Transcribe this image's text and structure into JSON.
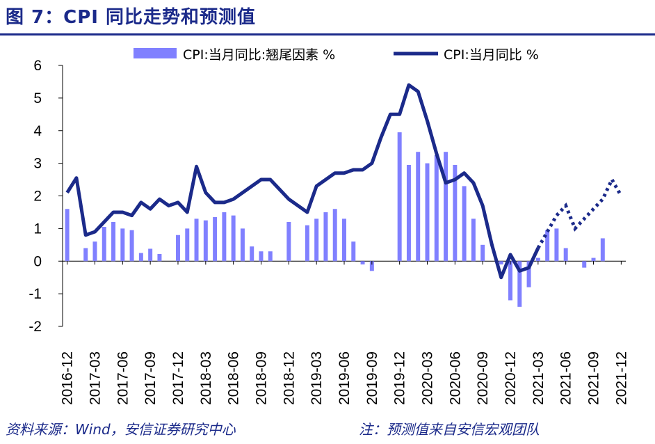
{
  "title": "图 7：CPI 同比走势和预测值",
  "footer": {
    "source": "资料来源：Wind，安信证券研究中心",
    "note": "注：预测值来自安信宏观团队"
  },
  "colors": {
    "title": "#1b2a8a",
    "line": "#1b2a8a",
    "bar": "#8080ff"
  },
  "chart_data": {
    "type": "bar+line",
    "title": "",
    "xlabel": "",
    "ylabel": "",
    "ylim": [
      -2,
      6
    ],
    "yticks": [
      "6",
      "5",
      "4",
      "3",
      "2",
      "1",
      "0",
      "-1",
      "-2"
    ],
    "x": [
      "2016-12",
      "2017-01",
      "2017-02",
      "2017-03",
      "2017-04",
      "2017-05",
      "2017-06",
      "2017-07",
      "2017-08",
      "2017-09",
      "2017-10",
      "2017-11",
      "2017-12",
      "2018-01",
      "2018-02",
      "2018-03",
      "2018-04",
      "2018-05",
      "2018-06",
      "2018-07",
      "2018-08",
      "2018-09",
      "2018-10",
      "2018-11",
      "2018-12",
      "2019-01",
      "2019-02",
      "2019-03",
      "2019-04",
      "2019-05",
      "2019-06",
      "2019-07",
      "2019-08",
      "2019-09",
      "2019-10",
      "2019-11",
      "2019-12",
      "2020-01",
      "2020-02",
      "2020-03",
      "2020-04",
      "2020-05",
      "2020-06",
      "2020-07",
      "2020-08",
      "2020-09",
      "2020-10",
      "2020-11",
      "2020-12",
      "2021-01",
      "2021-02",
      "2021-03",
      "2021-04",
      "2021-05",
      "2021-06",
      "2021-07",
      "2021-08",
      "2021-09",
      "2021-10",
      "2021-11",
      "2021-12"
    ],
    "xtick_labels": [
      "2016-12",
      "2017-03",
      "2017-06",
      "2017-09",
      "2017-12",
      "2018-03",
      "2018-06",
      "2018-09",
      "2018-12",
      "2019-03",
      "2019-06",
      "2019-09",
      "2019-12",
      "2020-03",
      "2020-06",
      "2020-09",
      "2020-12",
      "2021-03",
      "2021-06",
      "2021-09",
      "2021-12"
    ],
    "legend": {
      "position": "top",
      "entries": [
        "CPI:当月同比:翘尾因素 %",
        "CPI:当月同比 %"
      ]
    },
    "series": [
      {
        "name": "CPI:当月同比:翘尾因素 %",
        "type": "bar",
        "values": [
          1.6,
          0.0,
          0.4,
          0.6,
          1.05,
          1.2,
          1.0,
          0.95,
          0.25,
          0.38,
          0.22,
          0.0,
          0.8,
          1.0,
          1.3,
          1.25,
          1.35,
          1.5,
          1.4,
          1.0,
          0.45,
          0.3,
          0.3,
          0.0,
          1.2,
          0.0,
          1.1,
          1.3,
          1.5,
          1.6,
          1.3,
          0.6,
          -0.1,
          -0.3,
          0.0,
          0.0,
          3.95,
          2.95,
          3.35,
          3.0,
          3.25,
          3.35,
          2.95,
          2.3,
          1.3,
          0.5,
          0.0,
          -0.1,
          -1.2,
          -1.4,
          -0.8,
          0.1,
          0.95,
          1.0,
          0.4,
          0.0,
          -0.2,
          0.1,
          0.7,
          0.0,
          0.0
        ]
      },
      {
        "name": "CPI:当月同比 %",
        "type": "line",
        "actual_end": "2021-03",
        "values": [
          2.1,
          2.55,
          0.8,
          0.9,
          1.2,
          1.5,
          1.5,
          1.4,
          1.8,
          1.6,
          1.9,
          1.7,
          1.8,
          1.5,
          2.9,
          2.1,
          1.8,
          1.8,
          1.9,
          2.1,
          2.3,
          2.5,
          2.5,
          2.2,
          1.9,
          1.7,
          1.5,
          2.3,
          2.5,
          2.7,
          2.7,
          2.8,
          2.8,
          3.0,
          3.8,
          4.5,
          4.5,
          5.4,
          5.2,
          4.3,
          3.3,
          2.4,
          2.5,
          2.7,
          2.4,
          1.7,
          0.5,
          -0.5,
          0.2,
          -0.3,
          -0.2,
          0.4,
          0.9,
          1.4,
          1.7,
          1.0,
          1.3,
          1.6,
          1.9,
          2.5,
          2.0
        ]
      }
    ]
  }
}
